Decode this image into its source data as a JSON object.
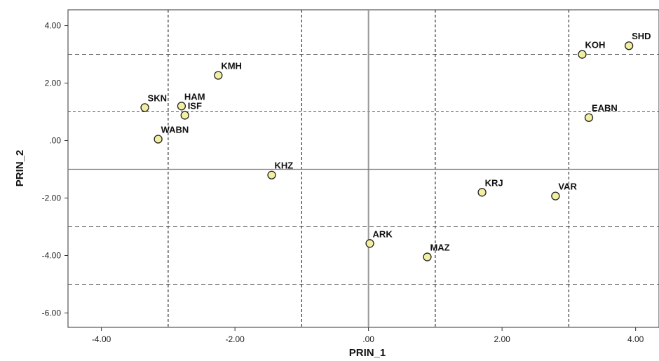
{
  "chart_data": {
    "type": "scatter",
    "title": "",
    "xlabel": "PRIN_1",
    "ylabel": "PRIN_2",
    "xlim": [
      -4.5,
      4.35
    ],
    "ylim": [
      -6.5,
      4.55
    ],
    "xticks": [
      -4,
      -2,
      0,
      2,
      4
    ],
    "xtick_labels": [
      "-4.00",
      "-2.00",
      ".00",
      "2.00",
      "4.00"
    ],
    "yticks": [
      4,
      2,
      0,
      -2,
      -4,
      -6
    ],
    "ytick_labels": [
      "4.00",
      "2.00",
      ".00",
      "-2.00",
      "-4.00",
      "-6.00"
    ],
    "grid": false,
    "reference_lines": {
      "vertical_solid": [
        0
      ],
      "horizontal_solid": [
        -1
      ],
      "vertical_dashed": [
        -3,
        -1,
        1,
        3
      ],
      "horizontal_dashed_long": [
        3,
        -3,
        -5
      ],
      "horizontal_dashed_short": [
        1
      ]
    },
    "marker_color": "#f2f0a0",
    "marker_edge": "#222222",
    "points": [
      {
        "label": "SHD",
        "x": 3.9,
        "y": 3.3
      },
      {
        "label": "KOH",
        "x": 3.2,
        "y": 3.0
      },
      {
        "label": "EABN",
        "x": 3.3,
        "y": 0.8
      },
      {
        "label": "KMH",
        "x": -2.25,
        "y": 2.27
      },
      {
        "label": "SKN",
        "x": -3.35,
        "y": 1.15
      },
      {
        "label": "HAM",
        "x": -2.8,
        "y": 1.2
      },
      {
        "label": "ISF",
        "x": -2.75,
        "y": 0.88
      },
      {
        "label": "WABN",
        "x": -3.15,
        "y": 0.05
      },
      {
        "label": "KHZ",
        "x": -1.45,
        "y": -1.2
      },
      {
        "label": "KRJ",
        "x": 1.7,
        "y": -1.8
      },
      {
        "label": "VAR",
        "x": 2.8,
        "y": -1.93
      },
      {
        "label": "ARK",
        "x": 0.02,
        "y": -3.58
      },
      {
        "label": "MAZ",
        "x": 0.88,
        "y": -4.05
      }
    ]
  }
}
